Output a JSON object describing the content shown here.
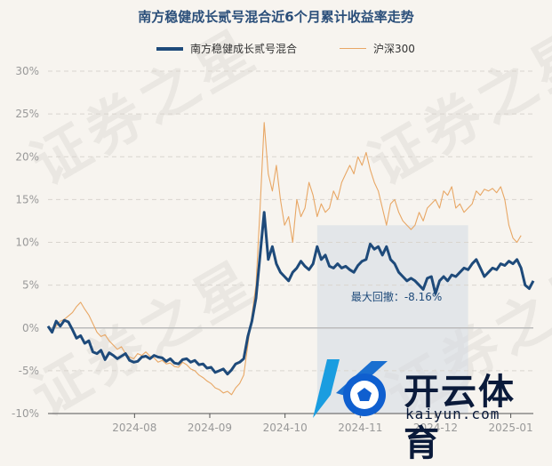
{
  "chart_data": {
    "type": "line",
    "title": "南方稳健成长贰号混合近6个月累计收益率走势",
    "y_ticks": [
      "30%",
      "25%",
      "20%",
      "15%",
      "10%",
      "5%",
      "0%",
      "-5%",
      "-10%"
    ],
    "y_values": [
      30,
      25,
      20,
      15,
      10,
      5,
      0,
      -5,
      -10
    ],
    "ylim": [
      -10,
      30
    ],
    "x_ticks": [
      "2024-08",
      "2024-09",
      "2024-10",
      "2024-11",
      "2024-12",
      "2025-01"
    ],
    "grid": true,
    "legend_position": "top-center",
    "annotation": "最大回撤：-8.16%",
    "drawdown_start_index": 66,
    "drawdown_end_index": 103,
    "series": [
      {
        "name": "南方稳健成长贰号混合",
        "color": "#1e4a7a",
        "values": [
          0.2,
          -0.5,
          0.8,
          0.2,
          0.9,
          0.7,
          -0.2,
          -1.2,
          -0.9,
          -1.8,
          -1.5,
          -2.8,
          -3.0,
          -2.6,
          -3.7,
          -2.9,
          -3.2,
          -3.6,
          -3.3,
          -3.0,
          -3.8,
          -4.0,
          -3.9,
          -3.4,
          -3.3,
          -3.6,
          -3.2,
          -3.4,
          -3.5,
          -3.9,
          -3.6,
          -4.1,
          -4.2,
          -3.7,
          -3.6,
          -4.0,
          -3.8,
          -4.3,
          -4.2,
          -4.7,
          -4.6,
          -5.2,
          -5.0,
          -4.8,
          -5.4,
          -4.9,
          -4.2,
          -4.0,
          -3.6,
          -1.0,
          0.8,
          3.5,
          8.5,
          13.5,
          8.0,
          9.5,
          7.5,
          6.5,
          6.0,
          5.5,
          6.5,
          7.0,
          7.8,
          7.2,
          6.8,
          7.5,
          9.5,
          8.0,
          8.5,
          7.2,
          7.0,
          7.5,
          7.0,
          7.2,
          6.8,
          6.5,
          7.3,
          7.8,
          8.0,
          9.8,
          9.2,
          9.5,
          8.5,
          9.5,
          8.0,
          7.5,
          6.5,
          6.0,
          5.5,
          5.8,
          5.5,
          5.0,
          4.5,
          5.8,
          6.0,
          4.0,
          5.5,
          6.0,
          5.5,
          6.2,
          6.0,
          6.5,
          7.0,
          6.8,
          7.5,
          8.0,
          7.0,
          6.0,
          6.5,
          7.0,
          6.8,
          7.5,
          7.3,
          7.8,
          7.5,
          8.0,
          7.0,
          5.0,
          4.6,
          5.5
        ]
      },
      {
        "name": "沪深300",
        "color": "#e8a765",
        "values": [
          0.0,
          -0.3,
          0.2,
          0.8,
          1.0,
          1.4,
          1.8,
          2.5,
          3.0,
          2.2,
          1.5,
          0.5,
          -0.5,
          -1.0,
          -0.8,
          -1.5,
          -2.0,
          -2.5,
          -2.2,
          -3.0,
          -3.4,
          -3.6,
          -3.0,
          -3.2,
          -2.8,
          -3.3,
          -3.5,
          -4.0,
          -3.8,
          -4.2,
          -4.1,
          -4.5,
          -4.6,
          -4.0,
          -4.3,
          -4.8,
          -5.0,
          -5.5,
          -5.8,
          -6.2,
          -6.5,
          -7.0,
          -7.2,
          -7.6,
          -7.4,
          -7.8,
          -7.0,
          -6.5,
          -5.5,
          -2.0,
          1.5,
          5.0,
          14.0,
          24.0,
          18.0,
          16.0,
          19.0,
          15.0,
          12.0,
          13.0,
          10.0,
          15.0,
          13.0,
          14.0,
          17.0,
          15.5,
          13.0,
          14.5,
          13.5,
          14.0,
          16.0,
          15.0,
          17.0,
          18.0,
          19.0,
          18.0,
          20.0,
          19.0,
          20.5,
          18.5,
          17.0,
          16.0,
          14.0,
          12.0,
          14.5,
          15.0,
          13.5,
          12.5,
          12.0,
          11.5,
          12.0,
          13.5,
          12.5,
          14.0,
          14.5,
          15.0,
          14.0,
          16.0,
          15.5,
          16.5,
          14.0,
          14.5,
          13.5,
          14.0,
          14.5,
          16.0,
          15.5,
          16.2,
          16.0,
          16.3,
          15.8,
          16.5,
          15.0,
          12.0,
          10.5,
          10.0,
          10.8
        ]
      }
    ]
  },
  "watermark": "证券之星",
  "logo": {
    "brand_text": "开云体育",
    "url_text": "kaiyun.com"
  }
}
